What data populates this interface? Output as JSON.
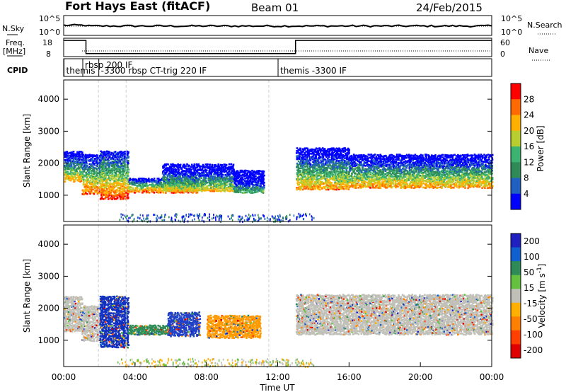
{
  "header": {
    "station": "Fort Hays East (fitACF)",
    "beam": "Beam 01",
    "date": "24/Feb/2015"
  },
  "top_panels": {
    "nsky_label": "N.Sky",
    "nsky_ticks": [
      "10^5",
      "10^0"
    ],
    "nsearch_label": "N.Search",
    "nsearch_ticks": [
      "10^5",
      "10^0"
    ],
    "freq_label_1": "Freq.",
    "freq_label_2": "[MHz]",
    "freq_ticks": [
      "18",
      "8"
    ],
    "nave_label": "Nave",
    "nave_ticks": [
      "60",
      "0"
    ],
    "cpid_label": "CPID",
    "cpid_entries": [
      {
        "text": "themis",
        "t": 0.1
      },
      {
        "text": "rbsp 200 IF",
        "t": 1.15
      },
      {
        "text": "-3300 rbsp CT-trig 220 IF",
        "t": 2.05
      },
      {
        "text": "themis -3300 IF",
        "t": 12.1
      }
    ],
    "freq_series": {
      "t": [
        0,
        1.25,
        1.25,
        13.0,
        13.0,
        24
      ],
      "mhz": [
        17.5,
        17.5,
        9.0,
        9.0,
        17.5,
        17.5
      ]
    }
  },
  "chart_data": [
    {
      "type": "heatmap",
      "title": "",
      "xlabel": "",
      "ylabel": "Slant Range [km]",
      "xlim": [
        0,
        24
      ],
      "ylim": [
        180,
        4600
      ],
      "yticks": [
        "1000",
        "2000",
        "3000",
        "4000"
      ],
      "colorbar_label": "Power [dB]",
      "colorbar_ticks": [
        "4",
        "8",
        "12",
        "16",
        "20",
        "24",
        "28"
      ],
      "colors": [
        "#0000ff",
        "#2060c0",
        "#2e8b57",
        "#3cb371",
        "#b7ce2e",
        "#ffb000",
        "#ff6a00",
        "#ff0000"
      ],
      "segments": [
        {
          "t0": 0.0,
          "t1": 1.0,
          "y0": 1450,
          "y1": 2400,
          "level": 0.45
        },
        {
          "t0": 1.0,
          "t1": 2.0,
          "y0": 1050,
          "y1": 2300,
          "level": 0.55
        },
        {
          "t0": 2.0,
          "t1": 3.6,
          "y0": 900,
          "y1": 2400,
          "level": 0.6
        },
        {
          "t0": 3.6,
          "t1": 7.5,
          "y0": 1100,
          "y1": 1550,
          "level": 0.55
        },
        {
          "t0": 5.5,
          "t1": 9.5,
          "y0": 1150,
          "y1": 2000,
          "level": 0.35
        },
        {
          "t0": 9.5,
          "t1": 11.2,
          "y0": 1100,
          "y1": 1800,
          "level": 0.15
        },
        {
          "t0": 13.0,
          "t1": 16.0,
          "y0": 1200,
          "y1": 2500,
          "level": 0.45
        },
        {
          "t0": 16.0,
          "t1": 24.0,
          "y0": 1250,
          "y1": 2300,
          "level": 0.45
        }
      ]
    },
    {
      "type": "heatmap",
      "title": "",
      "xlabel": "Time UT",
      "ylabel": "Slant Range [km]",
      "xlim": [
        0,
        24
      ],
      "ylim": [
        180,
        4600
      ],
      "yticks": [
        "1000",
        "2000",
        "3000",
        "4000"
      ],
      "xticks": [
        "00:00",
        "04:00",
        "08:00",
        "12:00",
        "16:00",
        "20:00",
        "00:00"
      ],
      "colorbar_label": "Velocity [m s^-1]",
      "colorbar_ticks": [
        "200",
        "100",
        "50",
        "15",
        "-15",
        "-50",
        "-100",
        "-200"
      ],
      "colors": [
        "#2020c0",
        "#1060d0",
        "#2e8b57",
        "#66c040",
        "#c0c0b8",
        "#ffb000",
        "#ff8000",
        "#ff4000",
        "#e00000"
      ],
      "segments": [
        {
          "t0": 0.0,
          "t1": 1.0,
          "y0": 1300,
          "y1": 2400,
          "color": "#c0c0b8"
        },
        {
          "t0": 1.0,
          "t1": 2.0,
          "y0": 1000,
          "y1": 2100,
          "color": "#c0c0b8"
        },
        {
          "t0": 2.0,
          "t1": 3.6,
          "y0": 800,
          "y1": 2400,
          "color": "#1030c0"
        },
        {
          "t0": 3.6,
          "t1": 6.0,
          "y0": 1200,
          "y1": 1500,
          "color": "#2e8b57"
        },
        {
          "t0": 5.8,
          "t1": 7.6,
          "y0": 1150,
          "y1": 1900,
          "color": "#2040c8"
        },
        {
          "t0": 8.0,
          "t1": 11.0,
          "y0": 1100,
          "y1": 1800,
          "color": "#ff9a00"
        },
        {
          "t0": 13.0,
          "t1": 24.0,
          "y0": 1200,
          "y1": 2450,
          "color": "#c0c0b8"
        }
      ]
    }
  ]
}
